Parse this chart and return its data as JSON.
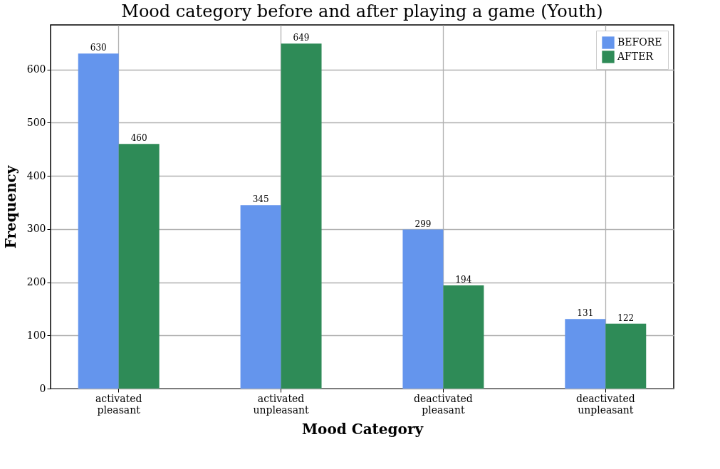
{
  "chart_data": {
    "type": "bar",
    "title": "Mood category before and after playing a game (Youth)",
    "xlabel": "Mood Category",
    "ylabel": "Frequency",
    "categories": [
      "activated pleasant",
      "activated unpleasant",
      "deactivated pleasant",
      "deactivated unpleasant"
    ],
    "series": [
      {
        "name": "BEFORE",
        "color": "#6495ed",
        "values": [
          630,
          345,
          299,
          131
        ]
      },
      {
        "name": "AFTER",
        "color": "#2e8b57",
        "values": [
          460,
          649,
          194,
          122
        ]
      }
    ],
    "ylim": [
      0,
      684
    ],
    "yticks": [
      0,
      100,
      200,
      300,
      400,
      500,
      600
    ],
    "grid": true,
    "legend": "top right",
    "data_labels": true
  }
}
